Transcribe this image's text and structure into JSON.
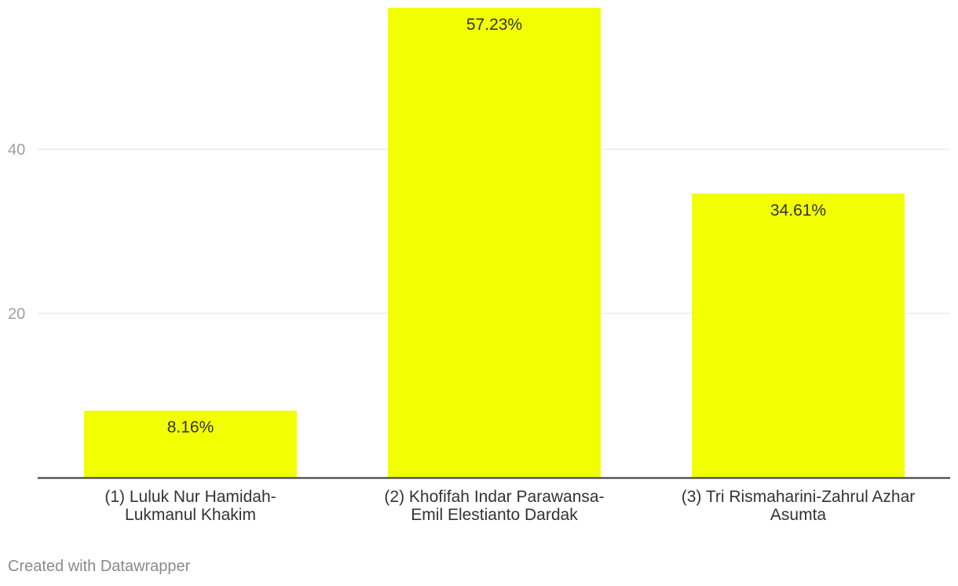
{
  "chart_data": {
    "type": "bar",
    "categories": [
      [
        "(1) Luluk Nur Hamidah-",
        "Lukmanul Khakim"
      ],
      [
        "(2) Khofifah Indar Parawansa-",
        "Emil Elestianto Dardak"
      ],
      [
        "(3) Tri Rismaharini-Zahrul Azhar",
        "Asumta"
      ]
    ],
    "values": [
      8.16,
      57.23,
      34.61
    ],
    "value_labels": [
      "8.16%",
      "57.23%",
      "34.61%"
    ],
    "y_ticks": [
      20,
      40
    ],
    "ylim": [
      0,
      57.23
    ],
    "grid": true,
    "bar_color": "#f2ff00",
    "title": "",
    "xlabel": "",
    "ylabel": ""
  },
  "footer": {
    "credit": "Created with Datawrapper"
  }
}
